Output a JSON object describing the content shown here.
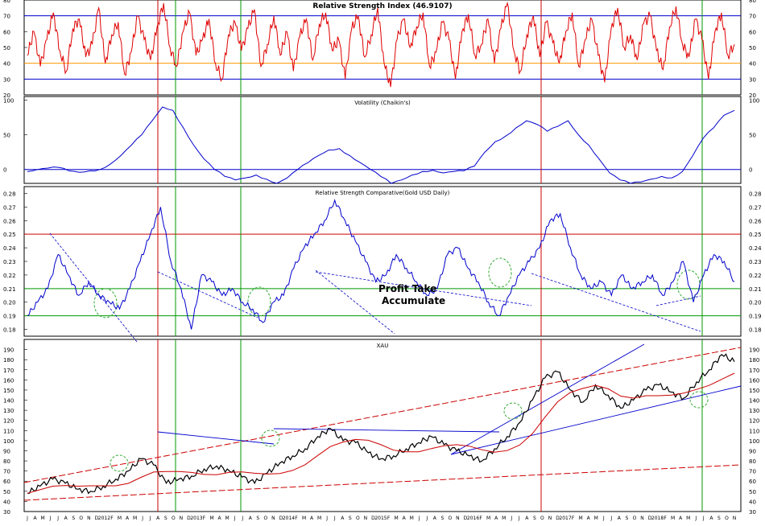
{
  "colors": {
    "rsi": "#e00000",
    "blue_line": "#0000cc",
    "red_line": "#cc0000",
    "green_line": "#009900",
    "orange_line": "#ff9900",
    "price": "#000000",
    "annotation_circle": "#33aa33"
  },
  "x_axis": {
    "month_labels": [
      "J",
      "A",
      "M",
      "J",
      "J",
      "A",
      "S",
      "O",
      "N",
      "D",
      "2012",
      "F",
      "M",
      "A",
      "M",
      "J",
      "J",
      "A",
      "S",
      "O",
      "N",
      "D",
      "2013",
      "F",
      "M",
      "A",
      "M",
      "J",
      "J",
      "A",
      "S",
      "O",
      "N",
      "D",
      "2014",
      "F",
      "M",
      "A",
      "M",
      "J",
      "J",
      "A",
      "S",
      "O",
      "N",
      "D",
      "2015",
      "F",
      "M",
      "A",
      "M",
      "J",
      "J",
      "A",
      "S",
      "O",
      "N",
      "D",
      "2016",
      "F",
      "M",
      "A",
      "M",
      "J",
      "J",
      "A",
      "S",
      "O",
      "N",
      "D",
      "2017",
      "F",
      "M",
      "A",
      "M",
      "J",
      "J",
      "A",
      "S",
      "O",
      "N",
      "D",
      "2018",
      "F",
      "M",
      "A",
      "M",
      "J",
      "J",
      "A",
      "S",
      "O",
      "N"
    ]
  },
  "chart_data": [
    {
      "id": "rsi",
      "type": "line",
      "title": "Relative Strength Index (46.9107)",
      "ylim": [
        20,
        80
      ],
      "yticks": [
        "20",
        "30",
        "40",
        "50",
        "60",
        "70",
        "80"
      ],
      "reference_lines": [
        {
          "y": 70,
          "color": "blue"
        },
        {
          "y": 40,
          "color": "orange"
        },
        {
          "y": 30,
          "color": "blue"
        }
      ],
      "series": [
        {
          "values": [
            45,
            60,
            38,
            55,
            72,
            48,
            35,
            62,
            68,
            44,
            52,
            75,
            40,
            58,
            66,
            33,
            47,
            70,
            55,
            42,
            63,
            78,
            50,
            38,
            60,
            72,
            45,
            55,
            68,
            40,
            30,
            58,
            66,
            48,
            62,
            74,
            38,
            52,
            70,
            45,
            60,
            35,
            57,
            68,
            42,
            65,
            72,
            48,
            55,
            30,
            62,
            70,
            44,
            58,
            75,
            40,
            25,
            55,
            68,
            50,
            63,
            72,
            38,
            47,
            66,
            55,
            30,
            60,
            71,
            45,
            52,
            68,
            40,
            62,
            78,
            48,
            35,
            58,
            70,
            44,
            66,
            53,
            40,
            60,
            72,
            38,
            55,
            68,
            45,
            28,
            62,
            75,
            50,
            58,
            42,
            65,
            70,
            48,
            36,
            63,
            76,
            52,
            44,
            68,
            55,
            30,
            60,
            72,
            45,
            52
          ]
        }
      ]
    },
    {
      "id": "volatility",
      "type": "line",
      "title": "Volatility (Chaikin's)",
      "ylim": [
        -20,
        105
      ],
      "yticks": [
        "0",
        "50",
        "100"
      ],
      "reference_lines": [
        {
          "y": 0,
          "color": "blue"
        }
      ],
      "series": [
        {
          "values": [
            -3,
            0,
            2,
            3,
            -2,
            -4,
            -2,
            0,
            8,
            20,
            35,
            50,
            70,
            90,
            85,
            60,
            35,
            15,
            0,
            -10,
            -15,
            -12,
            -8,
            -14,
            -20,
            -12,
            0,
            10,
            20,
            28,
            30,
            20,
            10,
            0,
            -10,
            -20,
            -15,
            -8,
            -3,
            -1,
            -5,
            -3,
            -2,
            5,
            25,
            40,
            48,
            60,
            70,
            65,
            55,
            62,
            70,
            50,
            35,
            15,
            -5,
            -15,
            -20,
            -18,
            -14,
            -10,
            -12,
            -3,
            20,
            45,
            60,
            78,
            85
          ]
        }
      ]
    },
    {
      "id": "relative_strength_comparative",
      "type": "line",
      "title": "Relative Strength Comparative(Gold USD Daily)",
      "ylim": [
        0.175,
        0.285
      ],
      "yticks": [
        "0.18",
        "0.19",
        "0.20",
        "0.21",
        "0.22",
        "0.23",
        "0.24",
        "0.25",
        "0.26",
        "0.27",
        "0.28"
      ],
      "reference_lines": [
        {
          "y": 0.25,
          "color": "red"
        },
        {
          "y": 0.21,
          "color": "green"
        },
        {
          "y": 0.19,
          "color": "green"
        }
      ],
      "annotations": [
        "Profit Take",
        "Accumulate"
      ],
      "series": [
        {
          "values": [
            0.19,
            0.2,
            0.21,
            0.235,
            0.22,
            0.205,
            0.215,
            0.205,
            0.2,
            0.195,
            0.21,
            0.23,
            0.25,
            0.27,
            0.23,
            0.21,
            0.18,
            0.22,
            0.215,
            0.205,
            0.21,
            0.2,
            0.195,
            0.185,
            0.2,
            0.205,
            0.225,
            0.24,
            0.25,
            0.26,
            0.275,
            0.26,
            0.245,
            0.23,
            0.215,
            0.22,
            0.235,
            0.225,
            0.215,
            0.205,
            0.21,
            0.235,
            0.24,
            0.225,
            0.215,
            0.2,
            0.19,
            0.205,
            0.22,
            0.23,
            0.24,
            0.26,
            0.265,
            0.24,
            0.22,
            0.21,
            0.215,
            0.205,
            0.22,
            0.21,
            0.215,
            0.22,
            0.205,
            0.215,
            0.23,
            0.2,
            0.22,
            0.235,
            0.23,
            0.215
          ]
        }
      ]
    },
    {
      "id": "xau",
      "type": "line",
      "title": "XAU",
      "ylim": [
        30,
        200
      ],
      "yticks": [
        "30",
        "40",
        "50",
        "60",
        "70",
        "80",
        "90",
        "100",
        "110",
        "120",
        "130",
        "140",
        "150",
        "160",
        "170",
        "180",
        "190"
      ],
      "series": [
        {
          "values": [
            48,
            55,
            62,
            58,
            52,
            50,
            55,
            62,
            70,
            82,
            76,
            58,
            62,
            65,
            72,
            75,
            70,
            64,
            58,
            68,
            78,
            85,
            92,
            104,
            112,
            100,
            98,
            88,
            82,
            85,
            92,
            98,
            104,
            96,
            90,
            85,
            80,
            92,
            104,
            118,
            140,
            162,
            168,
            150,
            138,
            155,
            145,
            132,
            140,
            150,
            155,
            148,
            142,
            158,
            170,
            185,
            178
          ]
        }
      ]
    }
  ]
}
